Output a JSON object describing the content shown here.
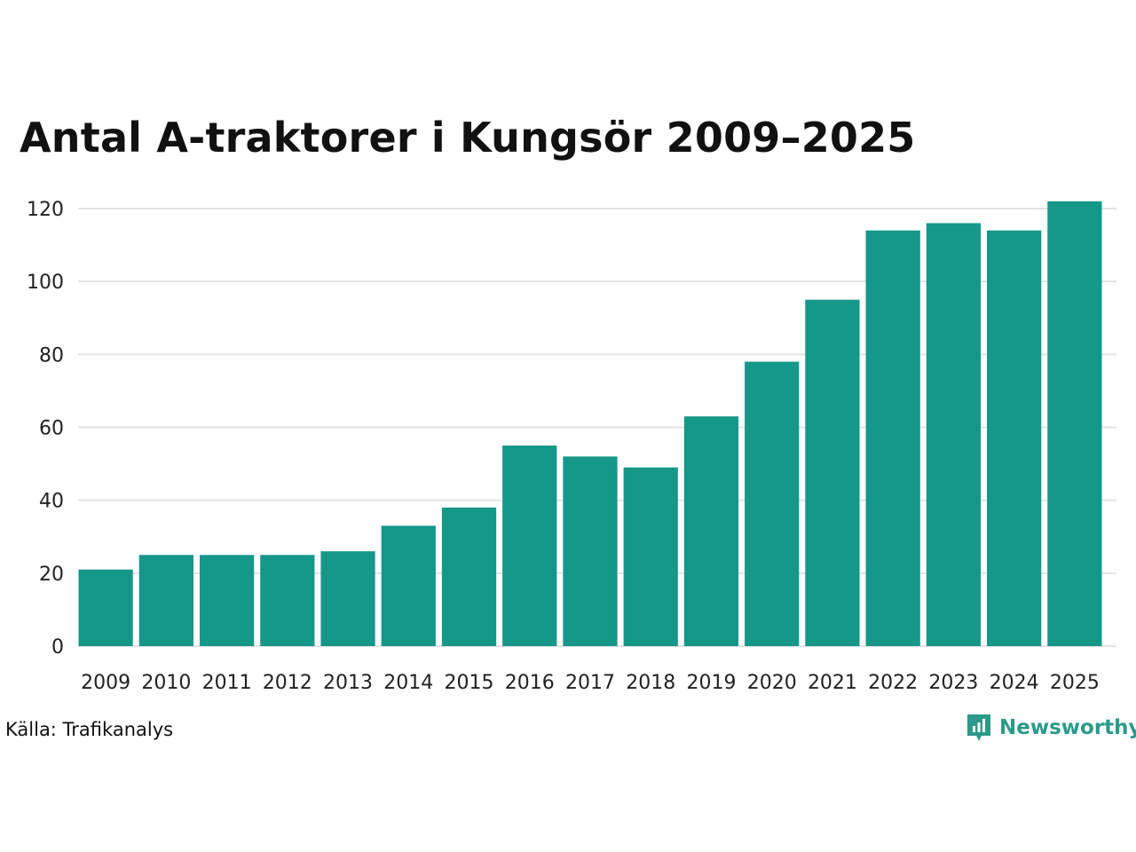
{
  "chart_data": {
    "type": "bar",
    "title": "Antal A-traktorer i Kungsör 2009–2025",
    "categories": [
      "2009",
      "2010",
      "2011",
      "2012",
      "2013",
      "2014",
      "2015",
      "2016",
      "2017",
      "2018",
      "2019",
      "2020",
      "2021",
      "2022",
      "2023",
      "2024",
      "2025"
    ],
    "values": [
      21,
      25,
      25,
      25,
      26,
      33,
      38,
      55,
      52,
      49,
      63,
      78,
      95,
      114,
      116,
      114,
      122
    ],
    "xlabel": "",
    "ylabel": "",
    "ylim": [
      0,
      125
    ],
    "yticks": [
      0,
      20,
      40,
      60,
      80,
      100,
      120
    ],
    "grid": "horizontal",
    "bar_color": "#15978a",
    "grid_color": "#e3e3e3"
  },
  "footer": {
    "source": "Källa: Trafikanalys",
    "brand": "Newsworthy",
    "brand_icon": "newsworthy-logo-icon",
    "brand_color": "#2b9a8a"
  }
}
